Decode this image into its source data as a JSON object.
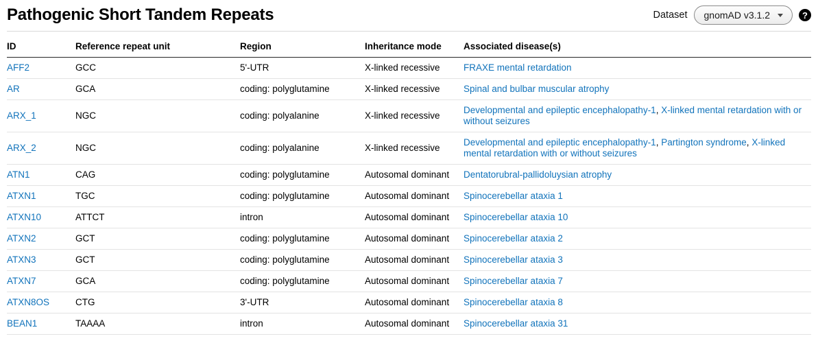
{
  "header": {
    "title": "Pathogenic Short Tandem Repeats",
    "dataset_label": "Dataset",
    "dataset_selector": {
      "value": "gnomAD v3.1.2"
    },
    "icons": {
      "help_glyph": "?"
    }
  },
  "colors": {
    "link": "#1173bb",
    "text": "#000000",
    "header_border": "#000000",
    "row_border": "#e3e3e3"
  },
  "table": {
    "columns": [
      "ID",
      "Reference repeat unit",
      "Region",
      "Inheritance mode",
      "Associated disease(s)"
    ],
    "rows": [
      {
        "id": "AFF2",
        "repeat_unit": "GCC",
        "region": "5'-UTR",
        "inheritance": "X-linked recessive",
        "diseases": [
          "FRAXE mental retardation"
        ]
      },
      {
        "id": "AR",
        "repeat_unit": "GCA",
        "region": "coding: polyglutamine",
        "inheritance": "X-linked recessive",
        "diseases": [
          "Spinal and bulbar muscular atrophy"
        ]
      },
      {
        "id": "ARX_1",
        "repeat_unit": "NGC",
        "region": "coding: polyalanine",
        "inheritance": "X-linked recessive",
        "diseases": [
          "Developmental and epileptic encephalopathy-1",
          "X-linked mental retardation with or without seizures"
        ]
      },
      {
        "id": "ARX_2",
        "repeat_unit": "NGC",
        "region": "coding: polyalanine",
        "inheritance": "X-linked recessive",
        "diseases": [
          "Developmental and epileptic encephalopathy-1",
          "Partington syndrome",
          "X-linked mental retardation with or without seizures"
        ]
      },
      {
        "id": "ATN1",
        "repeat_unit": "CAG",
        "region": "coding: polyglutamine",
        "inheritance": "Autosomal dominant",
        "diseases": [
          "Dentatorubral-pallidoluysian atrophy"
        ]
      },
      {
        "id": "ATXN1",
        "repeat_unit": "TGC",
        "region": "coding: polyglutamine",
        "inheritance": "Autosomal dominant",
        "diseases": [
          "Spinocerebellar ataxia 1"
        ]
      },
      {
        "id": "ATXN10",
        "repeat_unit": "ATTCT",
        "region": "intron",
        "inheritance": "Autosomal dominant",
        "diseases": [
          "Spinocerebellar ataxia 10"
        ]
      },
      {
        "id": "ATXN2",
        "repeat_unit": "GCT",
        "region": "coding: polyglutamine",
        "inheritance": "Autosomal dominant",
        "diseases": [
          "Spinocerebellar ataxia 2"
        ]
      },
      {
        "id": "ATXN3",
        "repeat_unit": "GCT",
        "region": "coding: polyglutamine",
        "inheritance": "Autosomal dominant",
        "diseases": [
          "Spinocerebellar ataxia 3"
        ]
      },
      {
        "id": "ATXN7",
        "repeat_unit": "GCA",
        "region": "coding: polyglutamine",
        "inheritance": "Autosomal dominant",
        "diseases": [
          "Spinocerebellar ataxia 7"
        ]
      },
      {
        "id": "ATXN8OS",
        "repeat_unit": "CTG",
        "region": "3'-UTR",
        "inheritance": "Autosomal dominant",
        "diseases": [
          "Spinocerebellar ataxia 8"
        ]
      },
      {
        "id": "BEAN1",
        "repeat_unit": "TAAAA",
        "region": "intron",
        "inheritance": "Autosomal dominant",
        "diseases": [
          "Spinocerebellar ataxia 31"
        ]
      }
    ]
  }
}
